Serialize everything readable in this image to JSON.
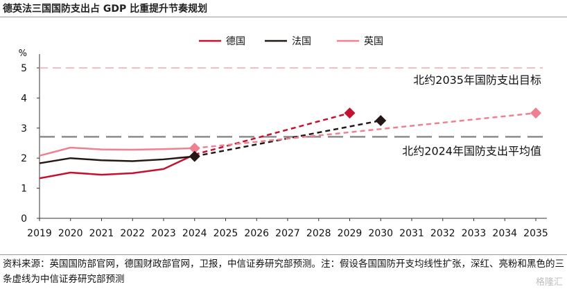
{
  "title": "德英法三国国防支出占 GDP 比重提升节奏规划",
  "source_note": "资料来源：英国国防部官网，德国财政部官网，卫报，中信证券研究部预测。注：假设各国国防开支均线性扩张，深红、亮粉和黑色的三条虚线为中信证券研究部预测",
  "watermark": "格隆汇",
  "chart_data": {
    "type": "line",
    "ylabel": "%",
    "xlabel": "",
    "xlim": [
      2019,
      2035
    ],
    "ylim": [
      0,
      5
    ],
    "x_ticks": [
      "2019",
      "2020",
      "2021",
      "2022",
      "2023",
      "2024",
      "2025",
      "2026",
      "2027",
      "2028",
      "2029",
      "2030",
      "2031",
      "2032",
      "2033",
      "2034",
      "2035"
    ],
    "y_ticks": [
      "0",
      "1",
      "2",
      "3",
      "4",
      "5"
    ],
    "legend_position": "top-center",
    "colors": {
      "germany": "#c8102e",
      "france": "#231815",
      "uk": "#f08090"
    },
    "series": [
      {
        "name": "德国",
        "key": "germany",
        "color": "#c8102e",
        "x": [
          2019,
          2020,
          2021,
          2022,
          2023,
          2024
        ],
        "values": [
          1.33,
          1.52,
          1.45,
          1.5,
          1.64,
          2.12
        ]
      },
      {
        "name": "法国",
        "key": "france",
        "color": "#231815",
        "x": [
          2019,
          2020,
          2021,
          2022,
          2023,
          2024
        ],
        "values": [
          1.83,
          2.0,
          1.93,
          1.9,
          1.96,
          2.06
        ]
      },
      {
        "name": "英国",
        "key": "uk",
        "color": "#f08090",
        "x": [
          2019,
          2020,
          2021,
          2022,
          2023,
          2024
        ],
        "values": [
          2.08,
          2.35,
          2.29,
          2.28,
          2.3,
          2.33
        ]
      }
    ],
    "projections": [
      {
        "key": "germany",
        "color": "#c8102e",
        "x": [
          2024,
          2029
        ],
        "values": [
          2.12,
          3.5
        ]
      },
      {
        "key": "france",
        "color": "#231815",
        "x": [
          2024,
          2030
        ],
        "values": [
          2.06,
          3.25
        ]
      },
      {
        "key": "uk",
        "color": "#f08090",
        "x": [
          2024,
          2035
        ],
        "values": [
          2.33,
          3.5
        ]
      }
    ],
    "reference_lines": [
      {
        "label": "北约2035年国防支出目标",
        "value": 5.0,
        "color": "#f4a7b0"
      },
      {
        "label": "北约2024年国防支出平均值",
        "value": 2.71,
        "color": "#8c8c8c"
      }
    ]
  }
}
